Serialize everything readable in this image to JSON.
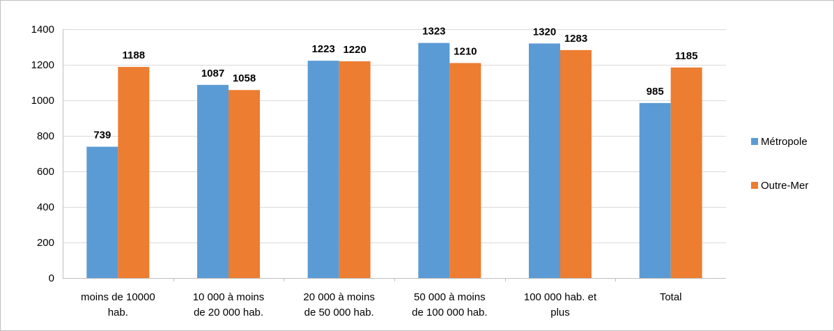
{
  "chart_data": {
    "type": "bar",
    "title": "",
    "xlabel": "",
    "ylabel": "",
    "ylim": [
      0,
      1400
    ],
    "yticks": [
      0,
      200,
      400,
      600,
      800,
      1000,
      1200,
      1400
    ],
    "grid": true,
    "legend_position": "right",
    "categories": [
      [
        "moins de 10000",
        "hab."
      ],
      [
        "10 000 à moins",
        "de 20 000 hab."
      ],
      [
        "20 000 à moins",
        "de 50 000 hab."
      ],
      [
        "50 000 à moins",
        "de 100 000 hab."
      ],
      [
        "100 000 hab. et",
        "plus"
      ],
      [
        "Total"
      ]
    ],
    "series": [
      {
        "name": "Métropole",
        "color": "#5b9bd5",
        "values": [
          739,
          1087,
          1223,
          1323,
          1320,
          985
        ]
      },
      {
        "name": "Outre-Mer",
        "color": "#ed7d31",
        "values": [
          1188,
          1058,
          1220,
          1210,
          1283,
          1185
        ]
      }
    ]
  }
}
